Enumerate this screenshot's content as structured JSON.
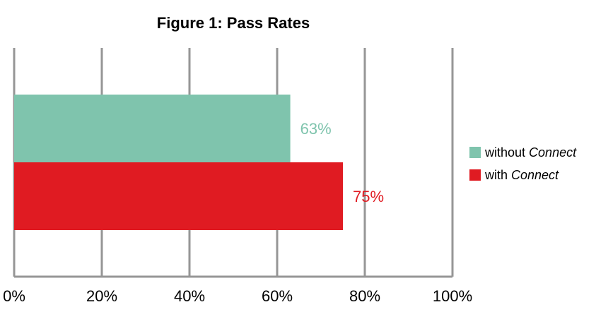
{
  "chart_data": {
    "type": "bar",
    "orientation": "horizontal",
    "title": "Figure 1: Pass Rates",
    "xlabel": "",
    "ylabel": "",
    "xlim": [
      0,
      100
    ],
    "x_ticks": [
      "0%",
      "20%",
      "40%",
      "60%",
      "80%",
      "100%"
    ],
    "x_tick_values": [
      0,
      20,
      40,
      60,
      80,
      100
    ],
    "grid": "vertical",
    "legend_position": "right",
    "series": [
      {
        "name_prefix": "without ",
        "name_emphasis": "Connect",
        "value": 63,
        "label": "63%",
        "color": "#7fc4ad"
      },
      {
        "name_prefix": "with ",
        "name_emphasis": "Connect",
        "value": 75,
        "label": "75%",
        "color": "#e01b22"
      }
    ]
  }
}
